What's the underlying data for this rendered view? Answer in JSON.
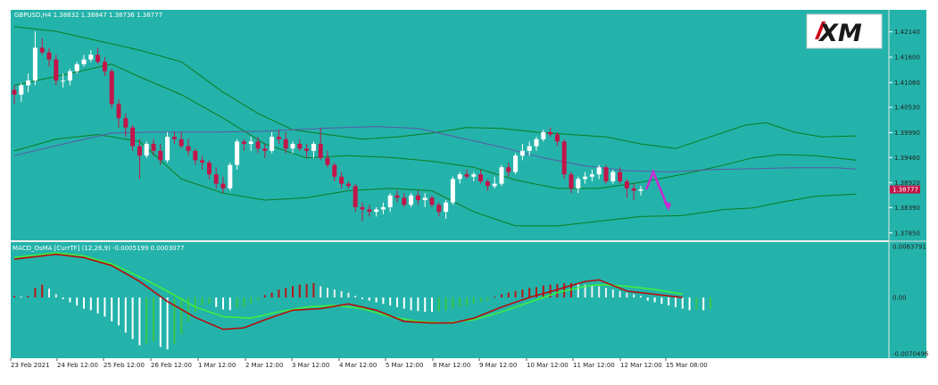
{
  "colors": {
    "background": "#24b3aa",
    "bull_candle": "#ffffff",
    "bear_candle": "#c2154a",
    "bollinger": "#0a7d1e",
    "moving_average": "#5a57a8",
    "macd_line": "#b80b0b",
    "signal_line": "#3df03d",
    "hist_up": "#b81616",
    "hist_up_fading": "#eeeeee",
    "hist_down": "#ffffff",
    "hist_down_fading": "#38c44b",
    "forecast_arrow": "#cc28d4",
    "price_badge": "#c2154a"
  },
  "header": {
    "price_panel_title": "GBPUSD,H4  1.38832 1.38847 1.38736 1.38777",
    "indicator_title": "MACD_OsMA [CurrTF] (12,26,9) -0.0005199 0.0003077"
  },
  "logo": {
    "text": "XM"
  },
  "price_axis": {
    "labels": [
      "1.42140",
      "1.41600",
      "1.41060",
      "1.40530",
      "1.39990",
      "1.39460",
      "1.38920",
      "1.38390",
      "1.37850"
    ],
    "current_price": "1.38777"
  },
  "indicator_axis": {
    "labels": [
      "0.0063791",
      "0.00",
      "-0.0070496"
    ]
  },
  "time_axis": {
    "labels": [
      "23 Feb 2021",
      "24 Feb 12:00",
      "25 Feb 12:00",
      "26 Feb 12:00",
      "1 Mar 12:00",
      "2 Mar 12:00",
      "3 Mar 12:00",
      "4 Mar 12:00",
      "5 Mar 12:00",
      "8 Mar 12:00",
      "9 Mar 12:00",
      "10 Mar 12:00",
      "11 Mar 12:00",
      "12 Mar 12:00",
      "15 Mar 08:00"
    ]
  },
  "chart_data": [
    {
      "type": "candlestick",
      "title": "GBPUSD,H4",
      "ylim": [
        1.3775,
        1.424
      ],
      "bollinger_upper": [
        [
          0,
          1.4225
        ],
        [
          6,
          1.4215
        ],
        [
          12,
          1.4195
        ],
        [
          18,
          1.4175
        ],
        [
          24,
          1.415
        ],
        [
          30,
          1.4085
        ],
        [
          35,
          1.404
        ],
        [
          40,
          1.4005
        ],
        [
          45,
          1.3995
        ],
        [
          50,
          1.3985
        ],
        [
          55,
          1.399
        ],
        [
          60,
          1.3998
        ],
        [
          65,
          1.401
        ],
        [
          70,
          1.4008
        ],
        [
          75,
          1.4
        ],
        [
          80,
          1.3995
        ],
        [
          85,
          1.399
        ],
        [
          90,
          1.3975
        ],
        [
          95,
          1.3965
        ],
        [
          100,
          1.399
        ],
        [
          105,
          1.4015
        ],
        [
          108,
          1.402
        ],
        [
          112,
          1.4
        ],
        [
          116,
          1.399
        ],
        [
          121,
          1.3992
        ]
      ],
      "bollinger_middle": [
        [
          0,
          1.41
        ],
        [
          8,
          1.4125
        ],
        [
          14,
          1.4145
        ],
        [
          18,
          1.4118
        ],
        [
          24,
          1.408
        ],
        [
          30,
          1.403
        ],
        [
          36,
          1.3975
        ],
        [
          42,
          1.3945
        ],
        [
          48,
          1.395
        ],
        [
          54,
          1.3946
        ],
        [
          60,
          1.3938
        ],
        [
          66,
          1.3925
        ],
        [
          72,
          1.3898
        ],
        [
          78,
          1.388
        ],
        [
          84,
          1.388
        ],
        [
          90,
          1.3893
        ],
        [
          96,
          1.391
        ],
        [
          102,
          1.393
        ],
        [
          106,
          1.3945
        ],
        [
          110,
          1.3952
        ],
        [
          115,
          1.395
        ],
        [
          121,
          1.394
        ]
      ],
      "bollinger_lower": [
        [
          0,
          1.396
        ],
        [
          6,
          1.3985
        ],
        [
          12,
          1.3995
        ],
        [
          18,
          1.398
        ],
        [
          24,
          1.39
        ],
        [
          30,
          1.387
        ],
        [
          36,
          1.3855
        ],
        [
          42,
          1.386
        ],
        [
          48,
          1.3875
        ],
        [
          54,
          1.388
        ],
        [
          60,
          1.3875
        ],
        [
          66,
          1.383
        ],
        [
          72,
          1.38
        ],
        [
          78,
          1.38
        ],
        [
          84,
          1.381
        ],
        [
          90,
          1.382
        ],
        [
          96,
          1.3822
        ],
        [
          102,
          1.3835
        ],
        [
          106,
          1.3838
        ],
        [
          110,
          1.385
        ],
        [
          115,
          1.3863
        ],
        [
          121,
          1.3868
        ]
      ],
      "moving_average": [
        [
          0,
          1.395
        ],
        [
          8,
          1.3978
        ],
        [
          14,
          1.3998
        ],
        [
          20,
          1.4
        ],
        [
          28,
          1.4
        ],
        [
          36,
          1.4002
        ],
        [
          44,
          1.4008
        ],
        [
          52,
          1.4012
        ],
        [
          58,
          1.4008
        ],
        [
          64,
          1.3988
        ],
        [
          70,
          1.3968
        ],
        [
          76,
          1.3945
        ],
        [
          82,
          1.3928
        ],
        [
          88,
          1.3918
        ],
        [
          94,
          1.3915
        ],
        [
          100,
          1.392
        ],
        [
          106,
          1.3922
        ],
        [
          112,
          1.3924
        ],
        [
          118,
          1.3924
        ],
        [
          121,
          1.3921
        ]
      ],
      "candles": [
        [
          1.409,
          1.41,
          1.406,
          1.408
        ],
        [
          1.408,
          1.4105,
          1.4065,
          1.41
        ],
        [
          1.41,
          1.4125,
          1.4085,
          1.411
        ],
        [
          1.411,
          1.4215,
          1.41,
          1.418
        ],
        [
          1.418,
          1.42,
          1.4165,
          1.417
        ],
        [
          1.417,
          1.418,
          1.414,
          1.4155
        ],
        [
          1.4155,
          1.4165,
          1.41,
          1.411
        ],
        [
          1.411,
          1.4125,
          1.4095,
          1.411
        ],
        [
          1.411,
          1.4135,
          1.41,
          1.413
        ],
        [
          1.413,
          1.415,
          1.4125,
          1.4145
        ],
        [
          1.4145,
          1.4165,
          1.414,
          1.4155
        ],
        [
          1.4155,
          1.4175,
          1.415,
          1.4165
        ],
        [
          1.4165,
          1.418,
          1.4145,
          1.415
        ],
        [
          1.415,
          1.416,
          1.412,
          1.413
        ],
        [
          1.413,
          1.4135,
          1.405,
          1.406
        ],
        [
          1.406,
          1.407,
          1.401,
          1.403
        ],
        [
          1.403,
          1.404,
          1.399,
          1.401
        ],
        [
          1.401,
          1.4015,
          1.396,
          1.397
        ],
        [
          1.397,
          1.3985,
          1.39,
          1.395
        ],
        [
          1.395,
          1.398,
          1.3945,
          1.3975
        ],
        [
          1.3975,
          1.3985,
          1.395,
          1.396
        ],
        [
          1.396,
          1.3975,
          1.393,
          1.394
        ],
        [
          1.394,
          1.4,
          1.3935,
          1.399
        ],
        [
          1.399,
          1.4,
          1.3975,
          1.3985
        ],
        [
          1.3985,
          1.4,
          1.3965,
          1.397
        ],
        [
          1.397,
          1.3985,
          1.395,
          1.396
        ],
        [
          1.396,
          1.3965,
          1.393,
          1.394
        ],
        [
          1.394,
          1.395,
          1.392,
          1.3935
        ],
        [
          1.3935,
          1.394,
          1.39,
          1.391
        ],
        [
          1.391,
          1.3925,
          1.388,
          1.389
        ],
        [
          1.389,
          1.3905,
          1.387,
          1.388
        ],
        [
          1.388,
          1.3935,
          1.3875,
          1.393
        ],
        [
          1.393,
          1.3985,
          1.392,
          1.398
        ],
        [
          1.398,
          1.3985,
          1.396,
          1.3975
        ],
        [
          1.3975,
          1.399,
          1.396,
          1.398
        ],
        [
          1.398,
          1.399,
          1.3955,
          1.3965
        ],
        [
          1.3965,
          1.3975,
          1.3945,
          1.396
        ],
        [
          1.396,
          1.4,
          1.3955,
          1.399
        ],
        [
          1.399,
          1.4005,
          1.3975,
          1.3985
        ],
        [
          1.3985,
          1.4,
          1.3955,
          1.3965
        ],
        [
          1.3965,
          1.398,
          1.3955,
          1.3975
        ],
        [
          1.3975,
          1.3985,
          1.396,
          1.3965
        ],
        [
          1.3965,
          1.3975,
          1.3945,
          1.396
        ],
        [
          1.396,
          1.398,
          1.3945,
          1.3975
        ],
        [
          1.3975,
          1.401,
          1.394,
          1.3945
        ],
        [
          1.3945,
          1.396,
          1.3925,
          1.393
        ],
        [
          1.393,
          1.3935,
          1.3895,
          1.3905
        ],
        [
          1.3905,
          1.3915,
          1.388,
          1.389
        ],
        [
          1.389,
          1.3895,
          1.388,
          1.3885
        ],
        [
          1.3885,
          1.389,
          1.383,
          1.384
        ],
        [
          1.384,
          1.385,
          1.381,
          1.3835
        ],
        [
          1.3835,
          1.3845,
          1.382,
          1.383
        ],
        [
          1.383,
          1.384,
          1.382,
          1.3835
        ],
        [
          1.3835,
          1.385,
          1.3825,
          1.384
        ],
        [
          1.384,
          1.387,
          1.383,
          1.3865
        ],
        [
          1.3865,
          1.3875,
          1.385,
          1.386
        ],
        [
          1.386,
          1.387,
          1.384,
          1.3845
        ],
        [
          1.3845,
          1.387,
          1.384,
          1.3865
        ],
        [
          1.3865,
          1.3875,
          1.3845,
          1.3855
        ],
        [
          1.3855,
          1.387,
          1.384,
          1.386
        ],
        [
          1.386,
          1.3865,
          1.384,
          1.3845
        ],
        [
          1.3845,
          1.385,
          1.382,
          1.383
        ],
        [
          1.383,
          1.3855,
          1.3815,
          1.385
        ],
        [
          1.385,
          1.3905,
          1.3845,
          1.39
        ],
        [
          1.39,
          1.3915,
          1.389,
          1.391
        ],
        [
          1.391,
          1.392,
          1.39,
          1.3905
        ],
        [
          1.3905,
          1.3915,
          1.3895,
          1.391
        ],
        [
          1.391,
          1.392,
          1.389,
          1.3895
        ],
        [
          1.3895,
          1.39,
          1.3875,
          1.3885
        ],
        [
          1.3885,
          1.3905,
          1.388,
          1.389
        ],
        [
          1.389,
          1.393,
          1.3885,
          1.3925
        ],
        [
          1.3925,
          1.3935,
          1.3905,
          1.3915
        ],
        [
          1.3915,
          1.3955,
          1.391,
          1.395
        ],
        [
          1.395,
          1.3975,
          1.394,
          1.396
        ],
        [
          1.396,
          1.398,
          1.395,
          1.397
        ],
        [
          1.397,
          1.399,
          1.396,
          1.3985
        ],
        [
          1.3985,
          1.4005,
          1.398,
          1.4
        ],
        [
          1.4,
          1.401,
          1.399,
          1.3995
        ],
        [
          1.3995,
          1.4,
          1.397,
          1.398
        ],
        [
          1.398,
          1.3985,
          1.39,
          1.391
        ],
        [
          1.391,
          1.3915,
          1.387,
          1.388
        ],
        [
          1.388,
          1.3905,
          1.387,
          1.39
        ],
        [
          1.39,
          1.3915,
          1.389,
          1.3905
        ],
        [
          1.3905,
          1.392,
          1.3895,
          1.391
        ],
        [
          1.391,
          1.393,
          1.39,
          1.3925
        ],
        [
          1.3925,
          1.393,
          1.389,
          1.3895
        ],
        [
          1.3895,
          1.392,
          1.389,
          1.3915
        ],
        [
          1.3915,
          1.3925,
          1.389,
          1.3895
        ],
        [
          1.3895,
          1.39,
          1.386,
          1.388
        ],
        [
          1.388,
          1.389,
          1.3855,
          1.3875
        ],
        [
          1.3875,
          1.3885,
          1.3865,
          1.3878
        ]
      ],
      "forecast_path": [
        [
          0,
          1.38777
        ],
        [
          2,
          1.3915
        ],
        [
          6,
          1.384
        ]
      ]
    },
    {
      "type": "bar",
      "title": "MACD_OsMA [CurrTF] (12,26,9)",
      "ylim": [
        -0.0070496,
        0.0063791
      ],
      "histogram": [
        0.0002,
        0.0001,
        0.0002,
        0.0012,
        0.0016,
        0.0011,
        0.0004,
        -0.0002,
        -0.0006,
        -0.001,
        -0.0014,
        -0.0016,
        -0.002,
        -0.0024,
        -0.003,
        -0.0035,
        -0.0044,
        -0.0052,
        -0.006,
        -0.0058,
        -0.0055,
        -0.0062,
        -0.0065,
        -0.0058,
        -0.0046,
        -0.003,
        -0.0018,
        -0.001,
        -0.0008,
        -0.0012,
        -0.0015,
        -0.0016,
        -0.0014,
        -0.0012,
        -0.0008,
        -0.0004,
        0.0003,
        0.0006,
        0.001,
        0.0012,
        0.0014,
        0.0016,
        0.0017,
        0.0018,
        0.0014,
        0.0012,
        0.001,
        0.0008,
        0.0006,
        0.0002,
        -0.0002,
        -0.0004,
        -0.0006,
        -0.0008,
        -0.001,
        -0.0012,
        -0.0014,
        -0.0016,
        -0.0017,
        -0.0018,
        -0.0018,
        -0.0017,
        -0.0016,
        -0.0014,
        -0.0012,
        -0.001,
        -0.0008,
        -0.0006,
        -0.0004,
        0.0001,
        0.0004,
        0.0006,
        0.0008,
        0.001,
        0.0012,
        0.0013,
        0.0015,
        0.0016,
        0.0017,
        0.0018,
        0.0018,
        0.0017,
        0.0016,
        0.0015,
        0.0014,
        0.0012,
        0.001,
        0.0008,
        0.0006,
        0.0004,
        0.0002,
        -0.0004,
        -0.0006,
        -0.0008,
        -0.001,
        -0.0012,
        -0.0014,
        -0.0016,
        -0.0015,
        -0.0016,
        -0.0014
      ],
      "macd_line": [
        [
          0,
          0.0048
        ],
        [
          6,
          0.0054
        ],
        [
          10,
          0.005
        ],
        [
          14,
          0.004
        ],
        [
          18,
          0.002
        ],
        [
          22,
          -0.0005
        ],
        [
          26,
          -0.0025
        ],
        [
          30,
          -0.004
        ],
        [
          33,
          -0.0038
        ],
        [
          36,
          -0.0028
        ],
        [
          40,
          -0.0016
        ],
        [
          44,
          -0.0014
        ],
        [
          48,
          -0.0008
        ],
        [
          52,
          -0.0016
        ],
        [
          56,
          -0.003
        ],
        [
          60,
          -0.0032
        ],
        [
          63,
          -0.0032
        ],
        [
          66,
          -0.0026
        ],
        [
          70,
          -0.0012
        ],
        [
          74,
          0.0
        ],
        [
          78,
          0.001
        ],
        [
          82,
          0.002
        ],
        [
          84,
          0.0022
        ],
        [
          88,
          0.0008
        ],
        [
          92,
          0.0004
        ],
        [
          96,
          0.0
        ]
      ],
      "signal_line": [
        [
          0,
          0.005
        ],
        [
          6,
          0.0056
        ],
        [
          10,
          0.0052
        ],
        [
          14,
          0.0042
        ],
        [
          18,
          0.0026
        ],
        [
          22,
          0.0008
        ],
        [
          26,
          -0.0012
        ],
        [
          30,
          -0.0024
        ],
        [
          34,
          -0.0026
        ],
        [
          38,
          -0.0018
        ],
        [
          42,
          -0.0012
        ],
        [
          46,
          -0.001
        ],
        [
          50,
          -0.0014
        ],
        [
          54,
          -0.0024
        ],
        [
          58,
          -0.003
        ],
        [
          62,
          -0.0032
        ],
        [
          66,
          -0.0028
        ],
        [
          70,
          -0.0018
        ],
        [
          74,
          -0.0006
        ],
        [
          78,
          0.0006
        ],
        [
          82,
          0.0014
        ],
        [
          84,
          0.0016
        ],
        [
          88,
          0.0014
        ],
        [
          92,
          0.001
        ],
        [
          96,
          0.0004
        ]
      ]
    }
  ]
}
